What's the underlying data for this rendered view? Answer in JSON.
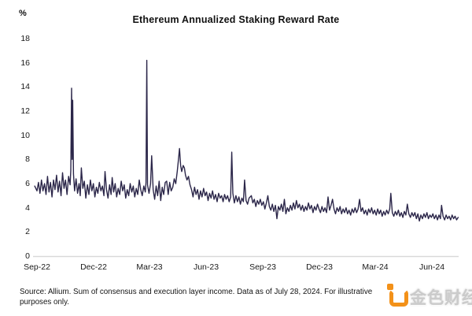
{
  "header": {
    "unit_label": "%",
    "title": "Ethereum Annualized Staking Reward Rate"
  },
  "source": {
    "lines": [
      "Source: Allium. Sum of consensus and execution layer income. Data as of July 28, 2024. For illustrative",
      "purposes only."
    ]
  },
  "watermark": {
    "text": "金色财经",
    "logo_color": "#f39119"
  },
  "chart_data": {
    "type": "line",
    "title": "Ethereum Annualized Staking Reward Rate",
    "y_unit_label": "%",
    "xlabel": "",
    "ylabel": "%",
    "ylim": [
      0,
      18
    ],
    "y_ticks": [
      0,
      2,
      4,
      6,
      8,
      10,
      12,
      14,
      16,
      18
    ],
    "x_unit": "months since Sep-2022 tick",
    "x_range_months": [
      -0.12,
      22.4
    ],
    "x_ticks": [
      {
        "label": "Sep-22",
        "m": 0
      },
      {
        "label": "Dec-22",
        "m": 3
      },
      {
        "label": "Mar-23",
        "m": 6
      },
      {
        "label": "Jun-23",
        "m": 9
      },
      {
        "label": "Sep-23",
        "m": 12
      },
      {
        "label": "Dec-23",
        "m": 15
      },
      {
        "label": "Mar-24",
        "m": 18
      },
      {
        "label": "Jun-24",
        "m": 21
      }
    ],
    "grid": "baseline at y=0 only, light gray",
    "legend": "none",
    "line_color": "#2b2649",
    "axis_color": "#d9d9d9",
    "notable_features": [
      "starts ~5.8% mid-Sep-2022, noisy 4.8-7.0 band",
      "spike to ~13.9% early Nov-2022",
      "largest spike ~16.2% early Mar-2023",
      "broad bump to ~8.9% mid-Apr-2023 (Shapella)",
      "spike ~8.6% late Jul-2023",
      "gradual decline to ~3-4% band through 2024, ends ~3.1% on Jul 28 2024"
    ],
    "series": [
      {
        "name": "Annualized staking reward rate (%)",
        "points": [
          [
            -0.12,
            5.8
          ],
          [
            0.0,
            5.4
          ],
          [
            0.08,
            6.1
          ],
          [
            0.16,
            5.2
          ],
          [
            0.24,
            6.3
          ],
          [
            0.32,
            5.4
          ],
          [
            0.4,
            6.0
          ],
          [
            0.48,
            5.1
          ],
          [
            0.56,
            6.6
          ],
          [
            0.64,
            5.3
          ],
          [
            0.72,
            6.1
          ],
          [
            0.8,
            4.9
          ],
          [
            0.88,
            6.3
          ],
          [
            0.96,
            5.5
          ],
          [
            1.04,
            6.7
          ],
          [
            1.12,
            5.3
          ],
          [
            1.2,
            6.2
          ],
          [
            1.28,
            5.0
          ],
          [
            1.36,
            6.9
          ],
          [
            1.44,
            5.6
          ],
          [
            1.52,
            6.3
          ],
          [
            1.6,
            5.1
          ],
          [
            1.68,
            6.6
          ],
          [
            1.76,
            5.9
          ],
          [
            1.8,
            7.1
          ],
          [
            1.84,
            13.9
          ],
          [
            1.87,
            8.0
          ],
          [
            1.9,
            12.9
          ],
          [
            1.94,
            6.8
          ],
          [
            2.0,
            5.4
          ],
          [
            2.08,
            6.4
          ],
          [
            2.16,
            5.2
          ],
          [
            2.24,
            6.0
          ],
          [
            2.3,
            5.0
          ],
          [
            2.36,
            7.3
          ],
          [
            2.44,
            5.6
          ],
          [
            2.52,
            6.2
          ],
          [
            2.6,
            4.8
          ],
          [
            2.68,
            5.9
          ],
          [
            2.76,
            5.1
          ],
          [
            2.84,
            6.3
          ],
          [
            2.92,
            5.4
          ],
          [
            3.0,
            6.0
          ],
          [
            3.08,
            4.9
          ],
          [
            3.16,
            5.7
          ],
          [
            3.24,
            5.2
          ],
          [
            3.32,
            6.1
          ],
          [
            3.4,
            5.4
          ],
          [
            3.48,
            5.8
          ],
          [
            3.56,
            5.0
          ],
          [
            3.62,
            7.0
          ],
          [
            3.7,
            5.5
          ],
          [
            3.78,
            4.8
          ],
          [
            3.86,
            5.9
          ],
          [
            3.94,
            5.1
          ],
          [
            4.0,
            6.5
          ],
          [
            4.08,
            5.3
          ],
          [
            4.16,
            6.0
          ],
          [
            4.24,
            4.9
          ],
          [
            4.32,
            5.6
          ],
          [
            4.4,
            5.1
          ],
          [
            4.48,
            6.2
          ],
          [
            4.56,
            5.4
          ],
          [
            4.64,
            5.9
          ],
          [
            4.72,
            4.8
          ],
          [
            4.8,
            5.5
          ],
          [
            4.88,
            5.0
          ],
          [
            4.96,
            6.0
          ],
          [
            5.04,
            5.3
          ],
          [
            5.12,
            5.8
          ],
          [
            5.2,
            4.9
          ],
          [
            5.28,
            5.6
          ],
          [
            5.36,
            5.1
          ],
          [
            5.44,
            6.3
          ],
          [
            5.52,
            5.5
          ],
          [
            5.6,
            5.0
          ],
          [
            5.68,
            5.8
          ],
          [
            5.76,
            5.3
          ],
          [
            5.8,
            6.1
          ],
          [
            5.84,
            16.2
          ],
          [
            5.88,
            5.9
          ],
          [
            5.96,
            5.2
          ],
          [
            6.04,
            6.0
          ],
          [
            6.1,
            8.3
          ],
          [
            6.18,
            5.5
          ],
          [
            6.26,
            4.7
          ],
          [
            6.34,
            5.8
          ],
          [
            6.42,
            5.0
          ],
          [
            6.5,
            6.2
          ],
          [
            6.58,
            4.6
          ],
          [
            6.66,
            5.7
          ],
          [
            6.74,
            5.1
          ],
          [
            6.82,
            6.1
          ],
          [
            6.9,
            6.2
          ],
          [
            6.98,
            5.1
          ],
          [
            7.06,
            6.1
          ],
          [
            7.14,
            5.4
          ],
          [
            7.22,
            5.7
          ],
          [
            7.3,
            6.4
          ],
          [
            7.38,
            6.0
          ],
          [
            7.46,
            7.0
          ],
          [
            7.52,
            7.9
          ],
          [
            7.58,
            8.9
          ],
          [
            7.64,
            7.5
          ],
          [
            7.7,
            7.0
          ],
          [
            7.78,
            7.5
          ],
          [
            7.84,
            7.3
          ],
          [
            7.9,
            6.7
          ],
          [
            7.98,
            6.3
          ],
          [
            8.06,
            6.6
          ],
          [
            8.14,
            5.9
          ],
          [
            8.22,
            5.5
          ],
          [
            8.3,
            4.9
          ],
          [
            8.38,
            5.7
          ],
          [
            8.46,
            5.1
          ],
          [
            8.54,
            5.5
          ],
          [
            8.62,
            4.7
          ],
          [
            8.7,
            5.4
          ],
          [
            8.78,
            4.9
          ],
          [
            8.86,
            5.6
          ],
          [
            8.94,
            5.0
          ],
          [
            9.02,
            5.3
          ],
          [
            9.1,
            4.6
          ],
          [
            9.18,
            5.2
          ],
          [
            9.26,
            4.8
          ],
          [
            9.34,
            5.4
          ],
          [
            9.42,
            4.7
          ],
          [
            9.5,
            5.1
          ],
          [
            9.58,
            4.5
          ],
          [
            9.66,
            5.2
          ],
          [
            9.74,
            4.8
          ],
          [
            9.82,
            5.0
          ],
          [
            9.9,
            4.5
          ],
          [
            9.98,
            5.1
          ],
          [
            10.06,
            4.7
          ],
          [
            10.14,
            5.0
          ],
          [
            10.22,
            4.5
          ],
          [
            10.3,
            4.9
          ],
          [
            10.36,
            8.6
          ],
          [
            10.42,
            5.2
          ],
          [
            10.5,
            4.4
          ],
          [
            10.58,
            5.0
          ],
          [
            10.66,
            4.5
          ],
          [
            10.74,
            4.9
          ],
          [
            10.82,
            4.3
          ],
          [
            10.9,
            4.8
          ],
          [
            10.98,
            4.5
          ],
          [
            11.04,
            6.3
          ],
          [
            11.12,
            4.6
          ],
          [
            11.2,
            4.3
          ],
          [
            11.28,
            4.8
          ],
          [
            11.4,
            5.0
          ],
          [
            11.48,
            4.4
          ],
          [
            11.56,
            4.7
          ],
          [
            11.64,
            4.1
          ],
          [
            11.72,
            4.6
          ],
          [
            11.8,
            4.3
          ],
          [
            11.88,
            4.7
          ],
          [
            11.96,
            4.2
          ],
          [
            12.04,
            4.5
          ],
          [
            12.12,
            3.9
          ],
          [
            12.2,
            4.4
          ],
          [
            12.28,
            5.0
          ],
          [
            12.36,
            4.1
          ],
          [
            12.44,
            3.8
          ],
          [
            12.52,
            4.3
          ],
          [
            12.6,
            3.7
          ],
          [
            12.68,
            4.2
          ],
          [
            12.76,
            3.1
          ],
          [
            12.84,
            4.1
          ],
          [
            12.92,
            3.8
          ],
          [
            13.0,
            4.3
          ],
          [
            13.08,
            3.7
          ],
          [
            13.16,
            4.7
          ],
          [
            13.24,
            3.5
          ],
          [
            13.32,
            4.0
          ],
          [
            13.4,
            3.7
          ],
          [
            13.48,
            4.2
          ],
          [
            13.56,
            3.8
          ],
          [
            13.64,
            4.4
          ],
          [
            13.72,
            3.9
          ],
          [
            13.8,
            4.6
          ],
          [
            13.88,
            4.0
          ],
          [
            13.96,
            4.3
          ],
          [
            14.04,
            3.8
          ],
          [
            14.12,
            4.2
          ],
          [
            14.2,
            3.7
          ],
          [
            14.28,
            4.1
          ],
          [
            14.36,
            3.8
          ],
          [
            14.44,
            4.4
          ],
          [
            14.52,
            3.9
          ],
          [
            14.6,
            4.2
          ],
          [
            14.68,
            3.6
          ],
          [
            14.76,
            4.1
          ],
          [
            14.84,
            3.8
          ],
          [
            14.92,
            4.3
          ],
          [
            15.0,
            3.9
          ],
          [
            15.08,
            3.6
          ],
          [
            15.16,
            4.1
          ],
          [
            15.24,
            3.7
          ],
          [
            15.32,
            4.0
          ],
          [
            15.4,
            3.6
          ],
          [
            15.48,
            4.9
          ],
          [
            15.56,
            3.8
          ],
          [
            15.64,
            4.2
          ],
          [
            15.72,
            4.7
          ],
          [
            15.8,
            3.9
          ],
          [
            15.88,
            3.5
          ],
          [
            15.96,
            4.0
          ],
          [
            16.04,
            3.7
          ],
          [
            16.12,
            4.1
          ],
          [
            16.2,
            3.5
          ],
          [
            16.28,
            3.9
          ],
          [
            16.36,
            3.6
          ],
          [
            16.44,
            4.0
          ],
          [
            16.52,
            3.5
          ],
          [
            16.6,
            3.8
          ],
          [
            16.68,
            3.4
          ],
          [
            16.76,
            3.9
          ],
          [
            16.84,
            3.6
          ],
          [
            16.92,
            4.0
          ],
          [
            17.0,
            3.6
          ],
          [
            17.08,
            3.9
          ],
          [
            17.16,
            4.7
          ],
          [
            17.24,
            3.7
          ],
          [
            17.32,
            4.0
          ],
          [
            17.4,
            3.5
          ],
          [
            17.48,
            3.8
          ],
          [
            17.56,
            3.4
          ],
          [
            17.64,
            3.9
          ],
          [
            17.72,
            3.6
          ],
          [
            17.8,
            4.0
          ],
          [
            17.88,
            3.5
          ],
          [
            17.96,
            3.8
          ],
          [
            18.04,
            3.4
          ],
          [
            18.12,
            3.9
          ],
          [
            18.2,
            3.5
          ],
          [
            18.28,
            3.8
          ],
          [
            18.36,
            3.3
          ],
          [
            18.44,
            3.7
          ],
          [
            18.52,
            3.4
          ],
          [
            18.6,
            3.8
          ],
          [
            18.68,
            3.5
          ],
          [
            18.76,
            3.9
          ],
          [
            18.82,
            5.2
          ],
          [
            18.9,
            3.6
          ],
          [
            18.98,
            3.3
          ],
          [
            19.06,
            3.7
          ],
          [
            19.14,
            3.4
          ],
          [
            19.22,
            3.8
          ],
          [
            19.3,
            3.3
          ],
          [
            19.38,
            3.6
          ],
          [
            19.46,
            3.2
          ],
          [
            19.54,
            3.7
          ],
          [
            19.62,
            3.4
          ],
          [
            19.7,
            4.3
          ],
          [
            19.78,
            3.5
          ],
          [
            19.86,
            3.2
          ],
          [
            19.94,
            3.6
          ],
          [
            20.02,
            3.3
          ],
          [
            20.1,
            3.6
          ],
          [
            20.18,
            3.1
          ],
          [
            20.26,
            3.5
          ],
          [
            20.34,
            2.9
          ],
          [
            20.42,
            3.4
          ],
          [
            20.5,
            3.1
          ],
          [
            20.58,
            3.5
          ],
          [
            20.66,
            3.2
          ],
          [
            20.74,
            3.6
          ],
          [
            20.82,
            3.1
          ],
          [
            20.9,
            3.4
          ],
          [
            20.98,
            3.2
          ],
          [
            21.06,
            3.5
          ],
          [
            21.14,
            3.1
          ],
          [
            21.22,
            3.4
          ],
          [
            21.3,
            3.0
          ],
          [
            21.38,
            3.4
          ],
          [
            21.46,
            3.1
          ],
          [
            21.52,
            4.2
          ],
          [
            21.6,
            3.3
          ],
          [
            21.68,
            3.0
          ],
          [
            21.76,
            3.4
          ],
          [
            21.84,
            3.1
          ],
          [
            21.92,
            3.3
          ],
          [
            22.0,
            3.0
          ],
          [
            22.08,
            3.4
          ],
          [
            22.16,
            3.1
          ],
          [
            22.24,
            3.3
          ],
          [
            22.32,
            3.0
          ],
          [
            22.4,
            3.2
          ]
        ]
      }
    ]
  }
}
